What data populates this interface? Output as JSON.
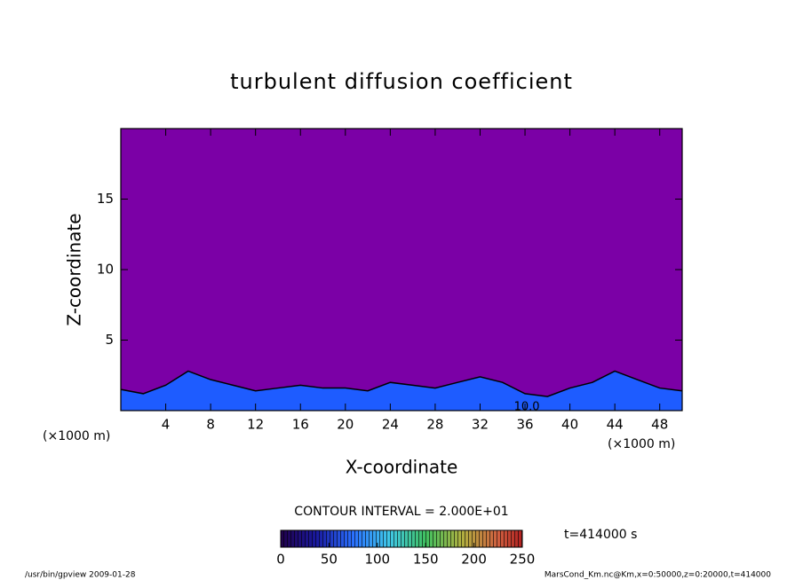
{
  "chart_data": {
    "type": "contour",
    "title": "turbulent diffusion coefficient",
    "xlabel": "X-coordinate",
    "ylabel": "Z-coordinate",
    "x_unit": "(×1000 m)",
    "y_unit": "(×1000 m)",
    "xlim": [
      0,
      50
    ],
    "xticks": [
      4,
      8,
      12,
      16,
      20,
      24,
      28,
      32,
      36,
      40,
      44,
      48
    ],
    "ylim": [
      0,
      20
    ],
    "yticks": [
      5,
      10,
      15
    ],
    "x": [
      0,
      2,
      4,
      6,
      8,
      10,
      12,
      14,
      16,
      18,
      20,
      22,
      24,
      26,
      28,
      30,
      32,
      34,
      36,
      38,
      40,
      42,
      44,
      46,
      48,
      50
    ],
    "values": [
      1.5,
      1.2,
      1.8,
      2.8,
      2.2,
      1.8,
      1.4,
      1.6,
      1.8,
      1.6,
      1.6,
      1.4,
      2.0,
      1.8,
      1.6,
      2.0,
      2.4,
      2.0,
      1.2,
      1.0,
      1.6,
      2.0,
      2.8,
      2.2,
      1.6,
      1.4
    ],
    "background_color": "#7b00a6",
    "layer_color": "#1e5cff",
    "contour_label": "10.0",
    "contour_interval": "CONTOUR INTERVAL = 2.000E+01",
    "colorbar": {
      "lim": [
        0,
        250
      ],
      "ticks": [
        0,
        50,
        100,
        150,
        200,
        250
      ]
    },
    "time_label": "t=414000 s",
    "footer_left": "/usr/bin/gpview  2009-01-28",
    "footer_right": "MarsCond_Km.nc@Km,x=0:50000,z=0:20000,t=414000"
  }
}
